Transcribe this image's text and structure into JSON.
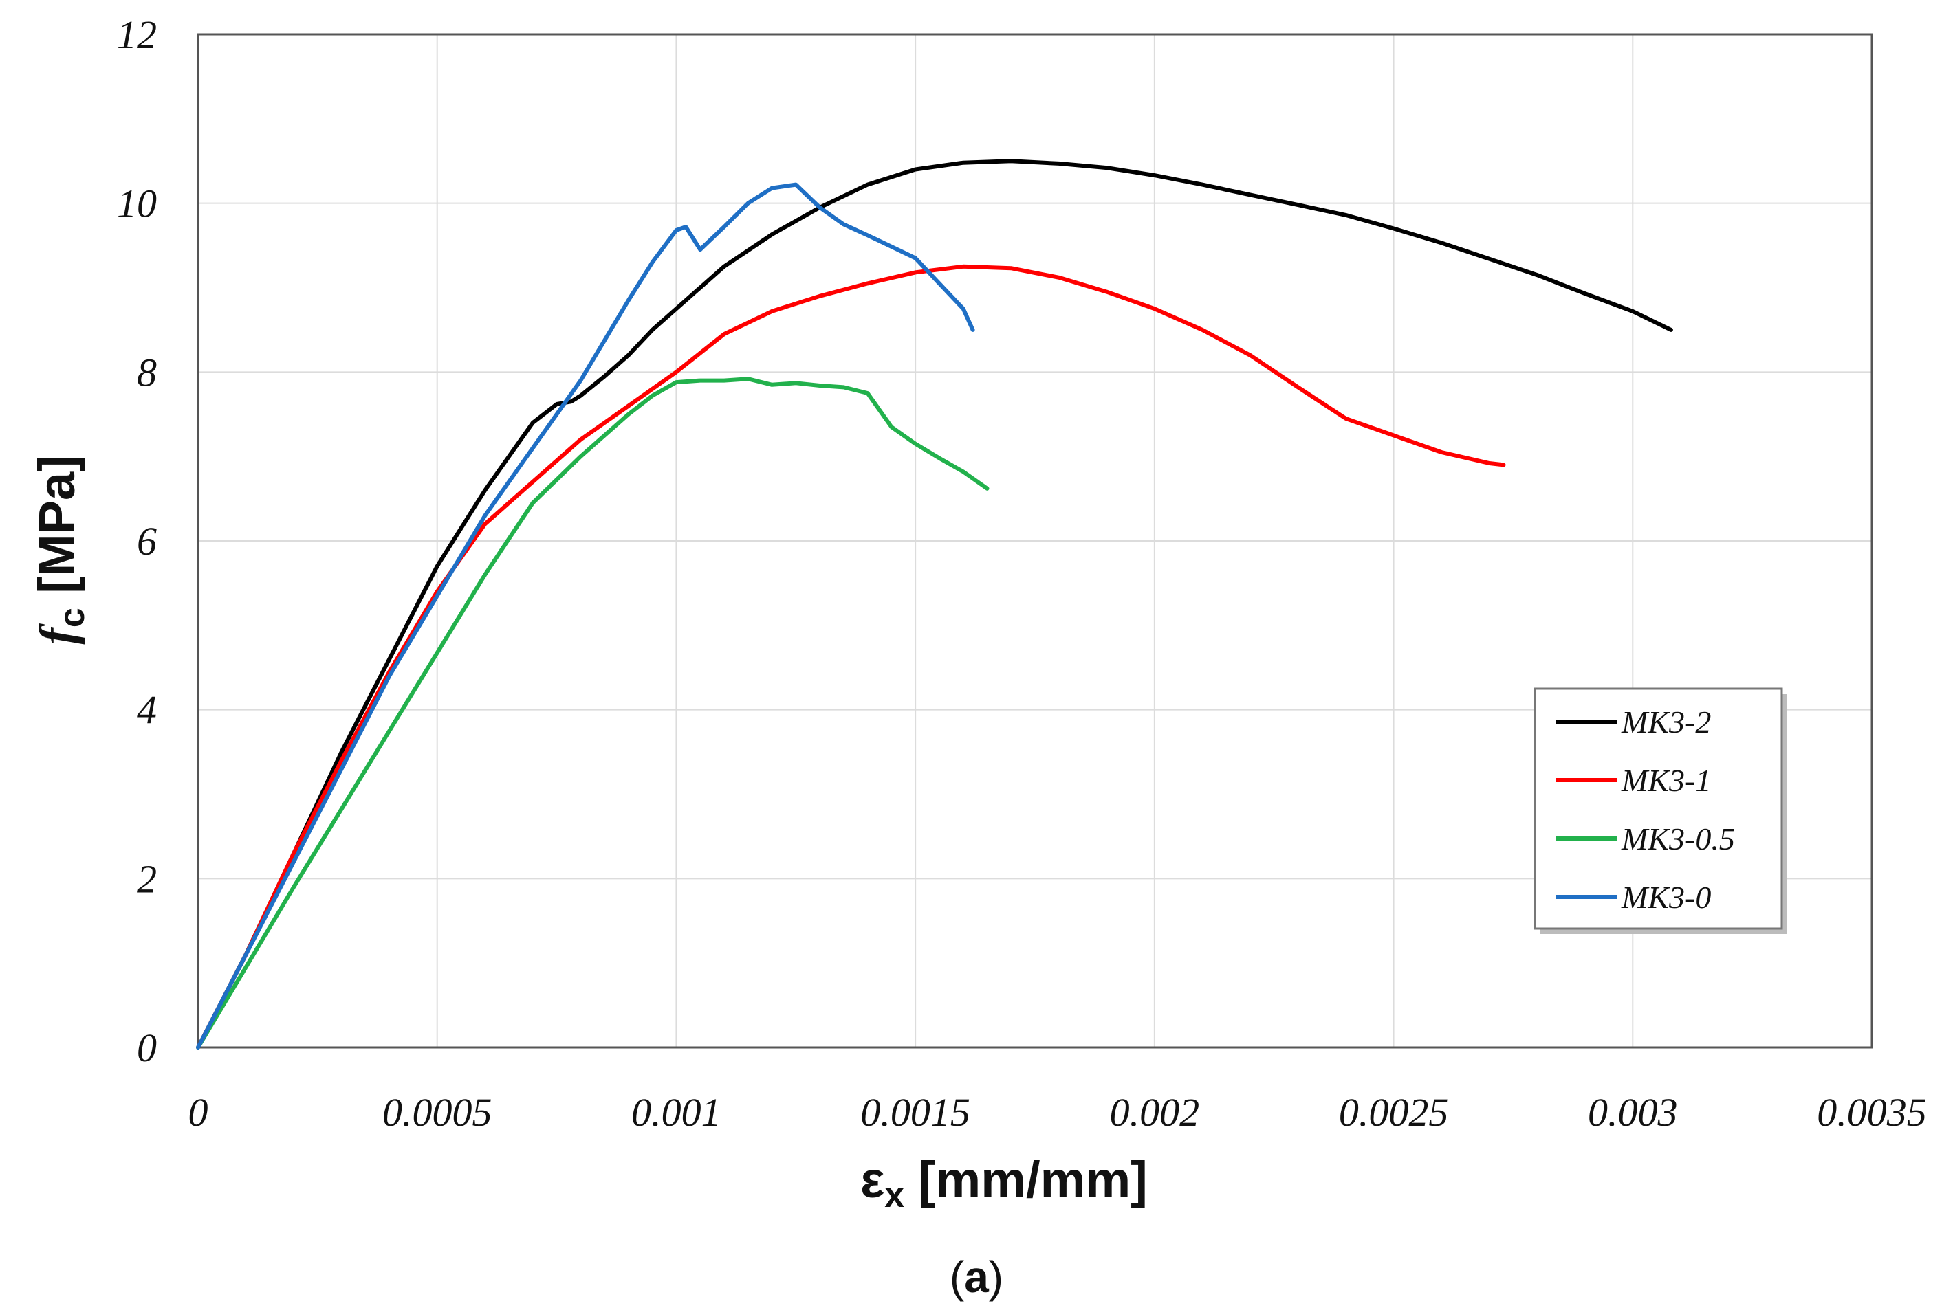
{
  "chart_data": {
    "type": "line",
    "title": "",
    "caption_open": "(",
    "caption": "a",
    "caption_close": ")",
    "xlabel": {
      "symbol": "ε",
      "sub": "x",
      "unit": " [mm/mm]"
    },
    "ylabel": {
      "symbol": "f",
      "sub": "c",
      "unit": " [MPa]"
    },
    "xlim": [
      0,
      0.0035
    ],
    "ylim": [
      0,
      12
    ],
    "xticks": [
      0,
      0.0005,
      0.001,
      0.0015,
      0.002,
      0.0025,
      0.003,
      0.0035
    ],
    "xtick_labels": [
      "0",
      "0.0005",
      "0.001",
      "0.0015",
      "0.002",
      "0.0025",
      "0.003",
      "0.0035"
    ],
    "yticks": [
      0,
      2,
      4,
      6,
      8,
      10,
      12
    ],
    "ytick_labels": [
      "0",
      "2",
      "4",
      "6",
      "8",
      "10",
      "12"
    ],
    "grid": true,
    "legend_position": "lower-right",
    "series": [
      {
        "name": "MK3-2",
        "color": "#000000",
        "x": [
          0,
          0.0001,
          0.0002,
          0.0003,
          0.0004,
          0.0005,
          0.0006,
          0.0007,
          0.00075,
          0.00078,
          0.0008,
          0.00085,
          0.0009,
          0.00095,
          0.001,
          0.0011,
          0.0012,
          0.0013,
          0.0014,
          0.0015,
          0.0016,
          0.0017,
          0.0018,
          0.0019,
          0.002,
          0.0021,
          0.0022,
          0.0023,
          0.0024,
          0.0025,
          0.0026,
          0.0027,
          0.0028,
          0.0029,
          0.003,
          0.00308
        ],
        "y": [
          0,
          1.1,
          2.3,
          3.5,
          4.6,
          5.7,
          6.6,
          7.4,
          7.62,
          7.65,
          7.72,
          7.95,
          8.2,
          8.5,
          8.75,
          9.25,
          9.63,
          9.95,
          10.22,
          10.4,
          10.48,
          10.5,
          10.47,
          10.42,
          10.33,
          10.22,
          10.1,
          9.98,
          9.86,
          9.7,
          9.53,
          9.34,
          9.15,
          8.93,
          8.72,
          8.5
        ]
      },
      {
        "name": "MK3-1",
        "color": "#ff0000",
        "x": [
          0,
          0.0001,
          0.0002,
          0.0003,
          0.0004,
          0.0005,
          0.0006,
          0.0007,
          0.0008,
          0.0009,
          0.001,
          0.0011,
          0.0012,
          0.0013,
          0.0014,
          0.0015,
          0.0016,
          0.0017,
          0.0018,
          0.0019,
          0.002,
          0.0021,
          0.0022,
          0.0023,
          0.0024,
          0.0025,
          0.0026,
          0.0027,
          0.00273
        ],
        "y": [
          0,
          1.1,
          2.3,
          3.4,
          4.45,
          5.4,
          6.2,
          6.7,
          7.2,
          7.6,
          8.0,
          8.45,
          8.72,
          8.9,
          9.05,
          9.18,
          9.25,
          9.23,
          9.12,
          8.95,
          8.75,
          8.5,
          8.2,
          7.82,
          7.45,
          7.25,
          7.05,
          6.92,
          6.9
        ]
      },
      {
        "name": "MK3-0.5",
        "color": "#22b14c",
        "x": [
          0,
          0.0002,
          0.0004,
          0.0006,
          0.0007,
          0.0008,
          0.0009,
          0.00095,
          0.001,
          0.00105,
          0.0011,
          0.00115,
          0.0012,
          0.00125,
          0.0013,
          0.00135,
          0.0014,
          0.00145,
          0.0015,
          0.00155,
          0.0016,
          0.00165
        ],
        "y": [
          0,
          1.9,
          3.75,
          5.6,
          6.45,
          7.0,
          7.5,
          7.72,
          7.88,
          7.9,
          7.9,
          7.92,
          7.85,
          7.87,
          7.84,
          7.82,
          7.75,
          7.35,
          7.15,
          6.98,
          6.82,
          6.62
        ]
      },
      {
        "name": "MK3-0",
        "color": "#1f6fc5",
        "x": [
          0,
          0.0002,
          0.0004,
          0.0006,
          0.0007,
          0.0008,
          0.0009,
          0.00095,
          0.001,
          0.00102,
          0.00105,
          0.0011,
          0.00115,
          0.0012,
          0.00125,
          0.0013,
          0.00135,
          0.0014,
          0.0015,
          0.00155,
          0.0016,
          0.00162
        ],
        "y": [
          0,
          2.2,
          4.4,
          6.3,
          7.1,
          7.9,
          8.85,
          9.3,
          9.68,
          9.72,
          9.45,
          9.72,
          10.0,
          10.18,
          10.22,
          9.95,
          9.75,
          9.62,
          9.35,
          9.05,
          8.75,
          8.5
        ]
      }
    ]
  }
}
